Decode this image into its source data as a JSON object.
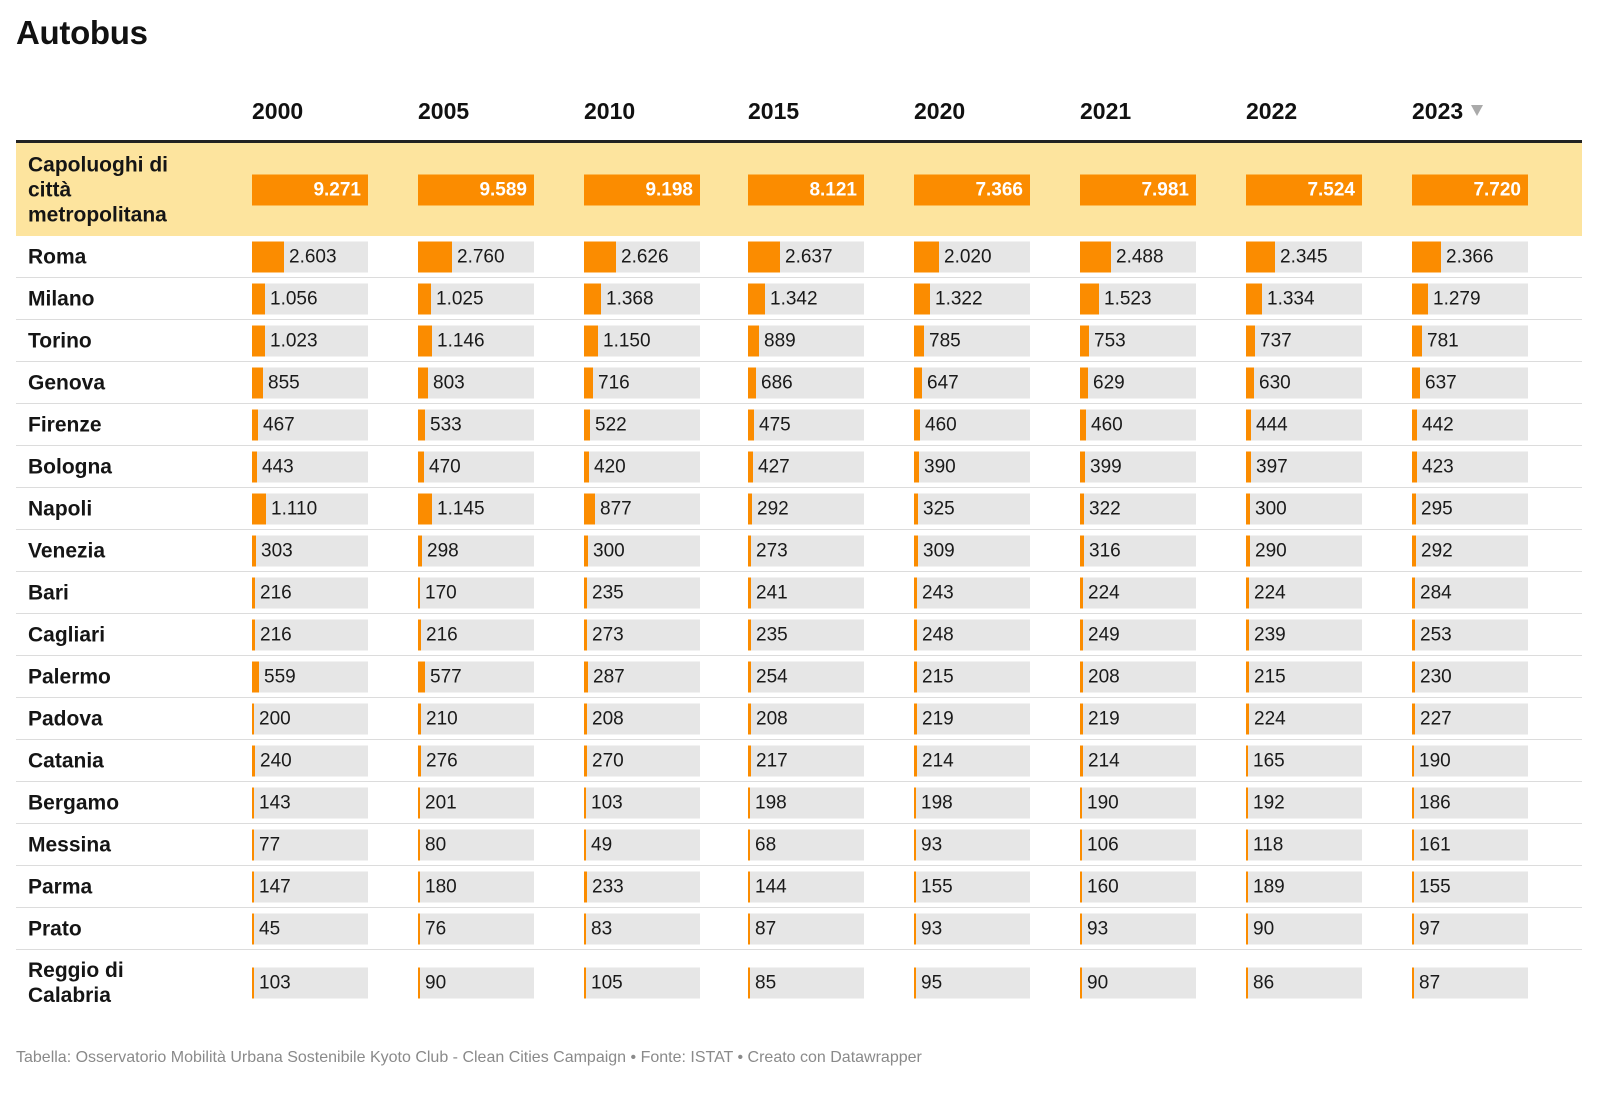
{
  "title": "Autobus",
  "footer": "Tabella: Osservatorio Mobilità Urbana Sostenibile Kyoto Club - Clean Cities Campaign • Fonte: ISTAT • Creato con Datawrapper",
  "colors": {
    "bar": "#fb8c00",
    "bar_track": "#e6e6e6",
    "highlight_row": "#fde49e"
  },
  "chart_data": {
    "type": "table",
    "title": "Autobus",
    "columns": [
      "2000",
      "2005",
      "2010",
      "2015",
      "2020",
      "2021",
      "2022",
      "2023"
    ],
    "sorted_column": "2023",
    "sort_icon": "sort-descending-icon",
    "rows": [
      {
        "label": "Capoluoghi di città metropolitana",
        "highlight": true,
        "values": [
          9271,
          9589,
          9198,
          8121,
          7366,
          7981,
          7524,
          7720
        ],
        "display": [
          "9.271",
          "9.589",
          "9.198",
          "8.121",
          "7.366",
          "7.981",
          "7.524",
          "7.720"
        ]
      },
      {
        "label": "Roma",
        "values": [
          2603,
          2760,
          2626,
          2637,
          2020,
          2488,
          2345,
          2366
        ],
        "display": [
          "2.603",
          "2.760",
          "2.626",
          "2.637",
          "2.020",
          "2.488",
          "2.345",
          "2.366"
        ]
      },
      {
        "label": "Milano",
        "values": [
          1056,
          1025,
          1368,
          1342,
          1322,
          1523,
          1334,
          1279
        ],
        "display": [
          "1.056",
          "1.025",
          "1.368",
          "1.342",
          "1.322",
          "1.523",
          "1.334",
          "1.279"
        ]
      },
      {
        "label": "Torino",
        "values": [
          1023,
          1146,
          1150,
          889,
          785,
          753,
          737,
          781
        ],
        "display": [
          "1.023",
          "1.146",
          "1.150",
          "889",
          "785",
          "753",
          "737",
          "781"
        ]
      },
      {
        "label": "Genova",
        "values": [
          855,
          803,
          716,
          686,
          647,
          629,
          630,
          637
        ],
        "display": [
          "855",
          "803",
          "716",
          "686",
          "647",
          "629",
          "630",
          "637"
        ]
      },
      {
        "label": "Firenze",
        "values": [
          467,
          533,
          522,
          475,
          460,
          460,
          444,
          442
        ],
        "display": [
          "467",
          "533",
          "522",
          "475",
          "460",
          "460",
          "444",
          "442"
        ]
      },
      {
        "label": "Bologna",
        "values": [
          443,
          470,
          420,
          427,
          390,
          399,
          397,
          423
        ],
        "display": [
          "443",
          "470",
          "420",
          "427",
          "390",
          "399",
          "397",
          "423"
        ]
      },
      {
        "label": "Napoli",
        "values": [
          1110,
          1145,
          877,
          292,
          325,
          322,
          300,
          295
        ],
        "display": [
          "1.110",
          "1.145",
          "877",
          "292",
          "325",
          "322",
          "300",
          "295"
        ]
      },
      {
        "label": "Venezia",
        "values": [
          303,
          298,
          300,
          273,
          309,
          316,
          290,
          292
        ],
        "display": [
          "303",
          "298",
          "300",
          "273",
          "309",
          "316",
          "290",
          "292"
        ]
      },
      {
        "label": "Bari",
        "values": [
          216,
          170,
          235,
          241,
          243,
          224,
          224,
          284
        ],
        "display": [
          "216",
          "170",
          "235",
          "241",
          "243",
          "224",
          "224",
          "284"
        ]
      },
      {
        "label": "Cagliari",
        "values": [
          216,
          216,
          273,
          235,
          248,
          249,
          239,
          253
        ],
        "display": [
          "216",
          "216",
          "273",
          "235",
          "248",
          "249",
          "239",
          "253"
        ]
      },
      {
        "label": "Palermo",
        "values": [
          559,
          577,
          287,
          254,
          215,
          208,
          215,
          230
        ],
        "display": [
          "559",
          "577",
          "287",
          "254",
          "215",
          "208",
          "215",
          "230"
        ]
      },
      {
        "label": "Padova",
        "values": [
          200,
          210,
          208,
          208,
          219,
          219,
          224,
          227
        ],
        "display": [
          "200",
          "210",
          "208",
          "208",
          "219",
          "219",
          "224",
          "227"
        ]
      },
      {
        "label": "Catania",
        "values": [
          240,
          276,
          270,
          217,
          214,
          214,
          165,
          190
        ],
        "display": [
          "240",
          "276",
          "270",
          "217",
          "214",
          "214",
          "165",
          "190"
        ]
      },
      {
        "label": "Bergamo",
        "values": [
          143,
          201,
          103,
          198,
          198,
          190,
          192,
          186
        ],
        "display": [
          "143",
          "201",
          "103",
          "198",
          "198",
          "190",
          "192",
          "186"
        ]
      },
      {
        "label": "Messina",
        "values": [
          77,
          80,
          49,
          68,
          93,
          106,
          118,
          161
        ],
        "display": [
          "77",
          "80",
          "49",
          "68",
          "93",
          "106",
          "118",
          "161"
        ]
      },
      {
        "label": "Parma",
        "values": [
          147,
          180,
          233,
          144,
          155,
          160,
          189,
          155
        ],
        "display": [
          "147",
          "180",
          "233",
          "144",
          "155",
          "160",
          "189",
          "155"
        ]
      },
      {
        "label": "Prato",
        "values": [
          45,
          76,
          83,
          87,
          93,
          93,
          90,
          97
        ],
        "display": [
          "45",
          "76",
          "83",
          "87",
          "93",
          "93",
          "90",
          "97"
        ]
      },
      {
        "label": "Reggio di Calabria",
        "values": [
          103,
          90,
          105,
          85,
          95,
          90,
          86,
          87
        ],
        "display": [
          "103",
          "90",
          "105",
          "85",
          "95",
          "90",
          "86",
          "87"
        ]
      }
    ],
    "bar_scale_max": 9589
  }
}
